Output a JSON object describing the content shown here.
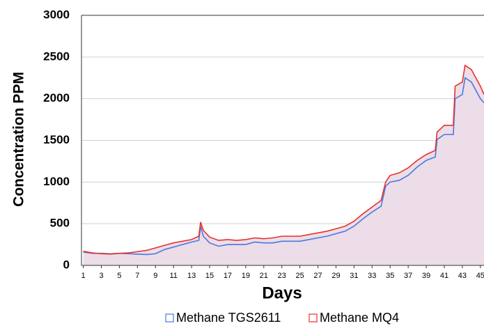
{
  "chart_data": {
    "type": "line",
    "xlabel": "Days",
    "ylabel": "Concentration PPM",
    "x": [
      1,
      2,
      3,
      4,
      5,
      6,
      7,
      8,
      9,
      10,
      11,
      12,
      13,
      13.8,
      14,
      14.3,
      15,
      16,
      17,
      18,
      19,
      20,
      21,
      22,
      23,
      24,
      25,
      26,
      27,
      28,
      29,
      30,
      31,
      32,
      33,
      34,
      34.5,
      35,
      36,
      37,
      38,
      39,
      40,
      40.2,
      41,
      42,
      42.2,
      43,
      43.3,
      44,
      45,
      45.4
    ],
    "series": [
      {
        "name": "Methane TGS2611",
        "color": "#4a78e0",
        "values": [
          160,
          145,
          145,
          140,
          145,
          140,
          135,
          130,
          140,
          190,
          220,
          250,
          280,
          300,
          470,
          350,
          270,
          230,
          250,
          250,
          250,
          280,
          270,
          270,
          290,
          290,
          290,
          310,
          330,
          350,
          380,
          410,
          470,
          560,
          640,
          710,
          950,
          1000,
          1020,
          1080,
          1180,
          1260,
          1300,
          1510,
          1570,
          1570,
          2000,
          2050,
          2250,
          2200,
          2000,
          1950
        ]
      },
      {
        "name": "Methane MQ4",
        "color": "#e8302a",
        "values": [
          170,
          150,
          140,
          135,
          145,
          150,
          165,
          180,
          210,
          240,
          270,
          290,
          310,
          350,
          520,
          420,
          340,
          300,
          310,
          300,
          310,
          330,
          320,
          330,
          350,
          350,
          350,
          370,
          390,
          410,
          440,
          470,
          530,
          620,
          700,
          780,
          1000,
          1080,
          1110,
          1170,
          1260,
          1330,
          1380,
          1600,
          1680,
          1680,
          2150,
          2200,
          2400,
          2350,
          2150,
          2050
        ]
      }
    ],
    "area_color": "#ecdde8",
    "xlim": [
      0.8,
      45.4
    ],
    "xticks": [
      1,
      3,
      5,
      7,
      9,
      11,
      13,
      15,
      17,
      19,
      21,
      23,
      25,
      27,
      29,
      31,
      33,
      35,
      37,
      39,
      41,
      43,
      45
    ],
    "ylim": [
      0,
      3000
    ],
    "yticks": [
      0,
      500,
      1000,
      1500,
      2000,
      2500,
      3000
    ],
    "grid": true,
    "legend": "bottom"
  }
}
